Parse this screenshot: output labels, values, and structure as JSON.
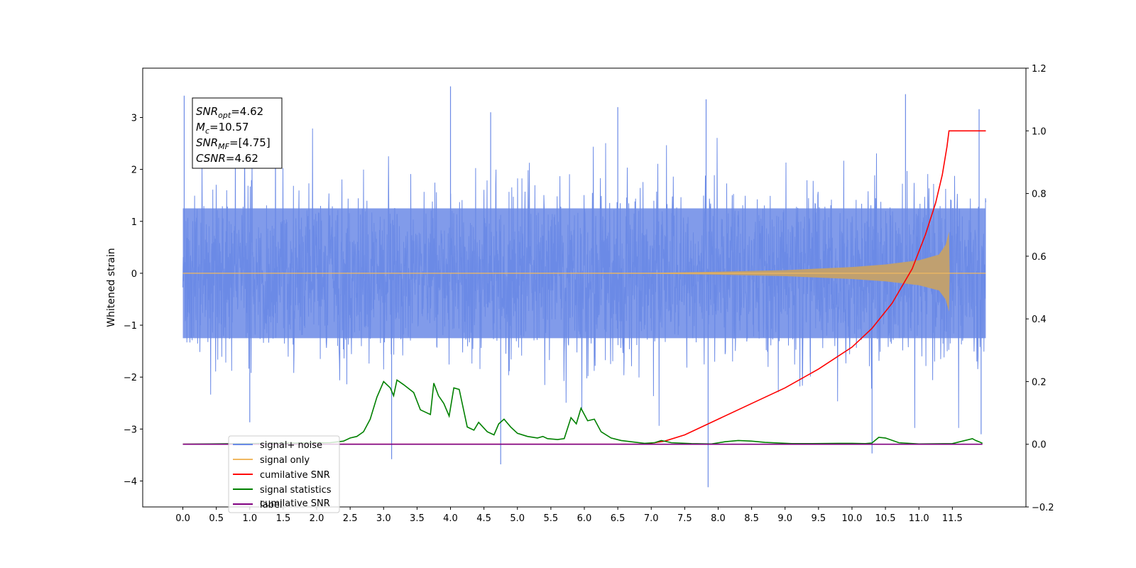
{
  "chart_data": {
    "type": "line",
    "ylabel_left": "Whitened strain",
    "xlabel": "",
    "xlim": [
      -0.6,
      12.6
    ],
    "ylim_left": [
      -4.5,
      3.95
    ],
    "ylim_right": [
      -0.2,
      1.2
    ],
    "x_ticks": [
      "0.0",
      "0.5",
      "1.0",
      "1.5",
      "2.0",
      "2.5",
      "3.0",
      "3.5",
      "4.0",
      "4.5",
      "5.0",
      "5.5",
      "6.0",
      "6.5",
      "7.0",
      "7.5",
      "8.0",
      "8.5",
      "9.0",
      "9.5",
      "10.0",
      "10.5",
      "11.0",
      "11.5"
    ],
    "y_ticks_left": [
      "−4",
      "−3",
      "−2",
      "−1",
      "0",
      "1",
      "2",
      "3"
    ],
    "y_ticks_right": [
      "−0.2",
      "0.0",
      "0.2",
      "0.4",
      "0.6",
      "0.8",
      "1.0",
      "1.2"
    ],
    "colors": {
      "noise": "#6b8ae6",
      "signal": "#f0b860",
      "signal_fill": "#c0a070",
      "csnr": "#ff0000",
      "stats": "#008000",
      "label": "#800080"
    },
    "legend": {
      "position": "lower-left",
      "entries": [
        {
          "label": "signal+ noise",
          "color": "#6b8ae6"
        },
        {
          "label": "signal only",
          "color": "#f0b860"
        },
        {
          "label": "cumilative SNR",
          "color": "#ff0000"
        },
        {
          "label": "signal statistics",
          "color": "#008000"
        },
        {
          "label": "label",
          "color": "#800080"
        }
      ],
      "overlap_text": "cumilative SNR"
    },
    "annotation": {
      "lines": [
        {
          "sym": "SNR",
          "sub": "opt",
          "value": "=4.62"
        },
        {
          "sym": "M",
          "sub": "c",
          "value": "=10.57"
        },
        {
          "sym": "SNR",
          "sub": "MF",
          "value": "=[4.75]"
        },
        {
          "sym": "CSNR",
          "sub": "",
          "value": "=4.62"
        }
      ]
    },
    "noise": {
      "x_range": [
        0,
        12.0
      ],
      "typical_amplitude": 1.8,
      "spikes": [
        {
          "x": 0.02,
          "y": 3.42
        },
        {
          "x": 1.0,
          "y": -2.87
        },
        {
          "x": 3.12,
          "y": -3.58
        },
        {
          "x": 4.0,
          "y": 3.6
        },
        {
          "x": 4.75,
          "y": -3.68
        },
        {
          "x": 7.85,
          "y": -4.12
        },
        {
          "x": 7.82,
          "y": 3.35
        },
        {
          "x": 10.8,
          "y": 3.45
        },
        {
          "x": 10.3,
          "y": -3.47
        },
        {
          "x": 11.9,
          "y": 3.16
        },
        {
          "x": 11.93,
          "y": -3.1
        },
        {
          "x": 6.5,
          "y": 3.2
        },
        {
          "x": 4.6,
          "y": 3.1
        }
      ]
    },
    "signal_only": {
      "x": [
        0,
        7.0,
        8.0,
        9.0,
        10.0,
        10.5,
        11.0,
        11.3,
        11.4,
        11.45,
        11.46,
        12.0
      ],
      "envelope": [
        0.0,
        0.01,
        0.03,
        0.06,
        0.12,
        0.17,
        0.25,
        0.36,
        0.55,
        0.8,
        0.0,
        0.0
      ]
    },
    "series": [
      {
        "name": "cumilative SNR",
        "axis": "right",
        "x": [
          0,
          6.9,
          7.2,
          7.5,
          8.0,
          8.5,
          9.0,
          9.5,
          10.0,
          10.3,
          10.6,
          10.9,
          11.1,
          11.25,
          11.35,
          11.42,
          11.45,
          12.0
        ],
        "y": [
          0.0,
          0.0,
          0.01,
          0.03,
          0.08,
          0.13,
          0.18,
          0.24,
          0.31,
          0.37,
          0.45,
          0.56,
          0.67,
          0.77,
          0.86,
          0.95,
          1.0,
          1.0
        ]
      },
      {
        "name": "signal statistics",
        "axis": "right",
        "x": [
          0,
          2.2,
          2.4,
          2.5,
          2.6,
          2.7,
          2.8,
          2.9,
          3.0,
          3.1,
          3.15,
          3.2,
          3.3,
          3.45,
          3.55,
          3.7,
          3.75,
          3.82,
          3.9,
          3.98,
          4.05,
          4.13,
          4.25,
          4.35,
          4.42,
          4.55,
          4.65,
          4.72,
          4.8,
          4.9,
          5.0,
          5.15,
          5.3,
          5.38,
          5.45,
          5.6,
          5.7,
          5.8,
          5.88,
          5.95,
          6.05,
          6.15,
          6.25,
          6.4,
          6.55,
          6.7,
          6.9,
          7.05,
          7.15,
          7.3,
          7.6,
          7.9,
          8.1,
          8.3,
          8.5,
          8.7,
          8.9,
          9.1,
          9.4,
          9.8,
          10.0,
          10.2,
          10.3,
          10.4,
          10.5,
          10.7,
          11.0,
          11.5,
          11.8,
          11.85,
          11.9,
          11.95
        ],
        "y": [
          0.0,
          0.005,
          0.01,
          0.02,
          0.025,
          0.04,
          0.08,
          0.15,
          0.2,
          0.18,
          0.155,
          0.205,
          0.19,
          0.165,
          0.11,
          0.095,
          0.195,
          0.155,
          0.13,
          0.09,
          0.18,
          0.175,
          0.055,
          0.045,
          0.07,
          0.04,
          0.03,
          0.065,
          0.08,
          0.055,
          0.035,
          0.025,
          0.02,
          0.025,
          0.018,
          0.015,
          0.018,
          0.085,
          0.065,
          0.115,
          0.075,
          0.08,
          0.04,
          0.02,
          0.012,
          0.008,
          0.003,
          0.005,
          0.012,
          0.005,
          0.002,
          0.001,
          0.008,
          0.012,
          0.01,
          0.006,
          0.004,
          0.002,
          0.002,
          0.003,
          0.003,
          0.002,
          0.004,
          0.022,
          0.02,
          0.005,
          0.001,
          0.002,
          0.018,
          0.012,
          0.008,
          0.003
        ]
      },
      {
        "name": "label",
        "axis": "right",
        "x": [
          0,
          11.95
        ],
        "y": [
          0.0,
          0.0
        ]
      }
    ]
  }
}
